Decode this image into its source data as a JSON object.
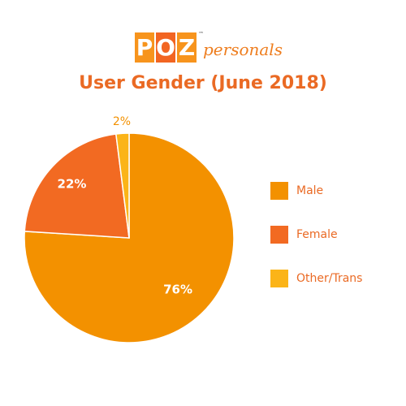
{
  "logo": {
    "letters": [
      "P",
      "O",
      "Z"
    ],
    "letter_colors": [
      "#f7941d",
      "#f26522",
      "#f7941d"
    ],
    "tm": "™",
    "word": "personals"
  },
  "chart_data": {
    "type": "pie",
    "title": "User Gender (June 2018)",
    "labels": [
      "Male",
      "Female",
      "Other/Trans"
    ],
    "values": [
      76,
      22,
      2
    ],
    "value_labels": [
      "76%",
      "22%",
      "2%"
    ],
    "colors": [
      "#f39100",
      "#f26a22",
      "#fbb418"
    ],
    "start_angle": "12 o'clock, clockwise",
    "legend_position": "right"
  }
}
